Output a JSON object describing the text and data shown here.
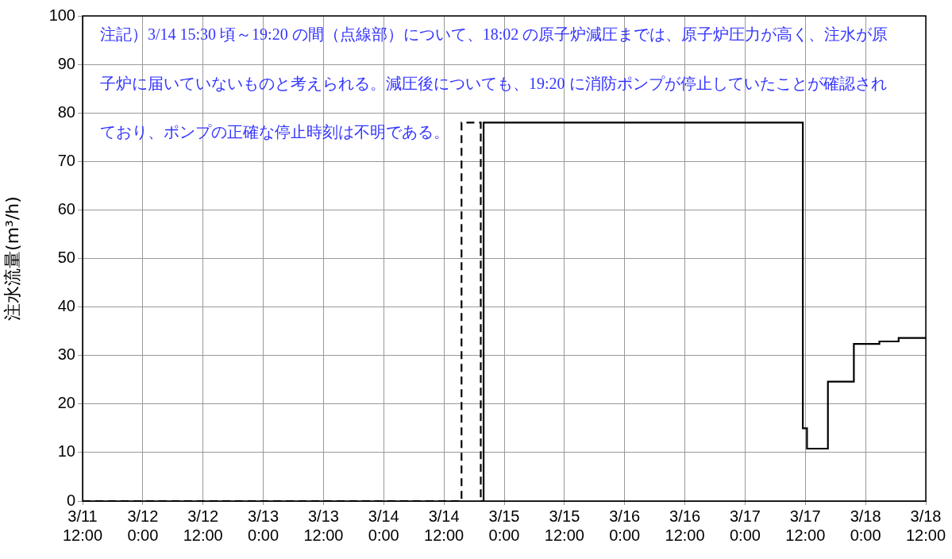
{
  "chart_data": {
    "type": "step",
    "ylabel": "注水流量(m³/h)",
    "series": [
      {
        "color": "#000000",
        "line_style": "dashed",
        "x": [
          "--03-11T12:00",
          "--03-14T15:30",
          "--03-14T19:20"
        ],
        "values": [
          0,
          78,
          0
        ]
      },
      {
        "color": "#000000",
        "line_style": "solid",
        "x": [
          "--03-14T19:20",
          "--03-14T19:54",
          "--03-17T11:30",
          "--03-17T12:20",
          "--03-17T16:30",
          "--03-17T21:40",
          "--03-18T02:45",
          "--03-18T06:35",
          "--03-18T12:00"
        ],
        "values": [
          0,
          78,
          15,
          10.8,
          24.6,
          32.4,
          32.9,
          33.6,
          33.6
        ]
      }
    ],
    "xlim": [
      "--03-11T12:00",
      "--03-18T12:00"
    ],
    "xticks": [
      {
        "value": "--03-11T12:00",
        "label": "3/11 12:00"
      },
      {
        "value": "--03-12T00:00",
        "label": "3/12 0:00"
      },
      {
        "value": "--03-12T12:00",
        "label": "3/12 12:00"
      },
      {
        "value": "--03-13T00:00",
        "label": "3/13 0:00"
      },
      {
        "value": "--03-13T12:00",
        "label": "3/13 12:00"
      },
      {
        "value": "--03-14T00:00",
        "label": "3/14 0:00"
      },
      {
        "value": "--03-14T12:00",
        "label": "3/14 12:00"
      },
      {
        "value": "--03-15T00:00",
        "label": "3/15 0:00"
      },
      {
        "value": "--03-15T12:00",
        "label": "3/15 12:00"
      },
      {
        "value": "--03-16T00:00",
        "label": "3/16 0:00"
      },
      {
        "value": "--03-16T12:00",
        "label": "3/16 12:00"
      },
      {
        "value": "--03-17T00:00",
        "label": "3/17 0:00"
      },
      {
        "value": "--03-17T12:00",
        "label": "3/17 12:00"
      },
      {
        "value": "--03-18T00:00",
        "label": "3/18 0:00"
      },
      {
        "value": "--03-18T12:00",
        "label": "3/18 12:00"
      }
    ],
    "ylim": [
      0,
      100
    ],
    "yticks": [
      0,
      10,
      20,
      30,
      40,
      50,
      60,
      70,
      80,
      90,
      100
    ],
    "grid": true,
    "legend": false,
    "marker": "none",
    "annotations": [
      {
        "text": "注記）3/14 15:30 頃～19:20 の間（点線部）について、18:02 の原子炉減圧までは、原子炉圧力が高く、注水が原子炉に届いていないものと考えられる。減圧後についても、19:20 に消防ポンプが停止していたことが確認されており、ポンプの正確な停止時刻は不明である。"
      }
    ]
  }
}
